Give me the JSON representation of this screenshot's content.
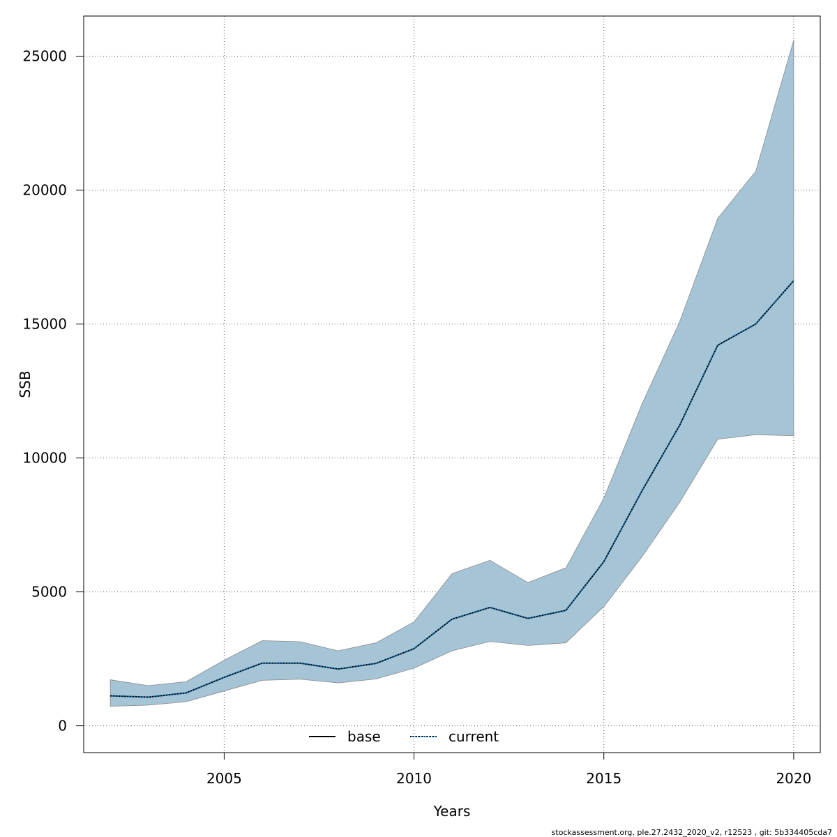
{
  "chart_data": {
    "type": "area",
    "xlabel": "Years",
    "ylabel": "SSB",
    "xlim": [
      2001.3,
      2020.7
    ],
    "ylim": [
      -1000,
      26500
    ],
    "xticks": [
      2005,
      2010,
      2015,
      2020
    ],
    "yticks": [
      0,
      5000,
      10000,
      15000,
      20000,
      25000
    ],
    "grid": true,
    "x": [
      2002,
      2003,
      2004,
      2005,
      2006,
      2007,
      2008,
      2009,
      2010,
      2011,
      2012,
      2013,
      2014,
      2015,
      2016,
      2017,
      2018,
      2019,
      2020
    ],
    "band_upper": [
      1720,
      1500,
      1650,
      2450,
      3180,
      3140,
      2800,
      3100,
      3880,
      5680,
      6180,
      5350,
      5900,
      8500,
      12000,
      15100,
      18950,
      20700,
      25600
    ],
    "band_lower": [
      730,
      770,
      900,
      1300,
      1700,
      1740,
      1600,
      1750,
      2150,
      2800,
      3150,
      3000,
      3100,
      4450,
      6300,
      8350,
      10700,
      10870,
      10830
    ],
    "series": [
      {
        "name": "base",
        "line_style": "solid",
        "color": "#000000",
        "values": [
          1120,
          1070,
          1230,
          1810,
          2340,
          2340,
          2120,
          2330,
          2880,
          3980,
          4420,
          4010,
          4310,
          6130,
          8760,
          11230,
          14210,
          15000,
          16620
        ]
      },
      {
        "name": "current",
        "line_style": "dotted",
        "color": "#0a6aa8",
        "values": [
          1120,
          1070,
          1230,
          1810,
          2340,
          2340,
          2120,
          2330,
          2880,
          3980,
          4420,
          4010,
          4310,
          6130,
          8760,
          11230,
          14210,
          15000,
          16620
        ]
      }
    ],
    "legend": {
      "placement": "bottom-center",
      "entries": [
        "base",
        "current"
      ]
    },
    "footer": "stockassessment.org, ple.27.2432_2020_v2, r12523 , git: 5b334405cda7"
  },
  "colors": {
    "band_fill": "#a5c4d6",
    "band_stroke": "#8a8a8a",
    "grid": "#555555",
    "current_line": "#0a6aa8"
  }
}
